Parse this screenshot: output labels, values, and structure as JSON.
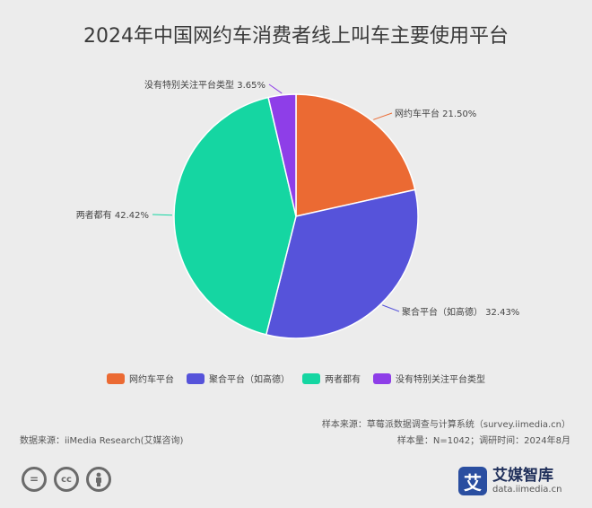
{
  "chart_data": {
    "type": "pie",
    "title": "2024年中国网约车消费者线上叫车主要使用平台",
    "slices": [
      {
        "name": "网约车平台",
        "value": 21.5,
        "label": "网约车平台 21.50%",
        "color": "#eb6a33"
      },
      {
        "name": "聚合平台（如高德）",
        "value": 32.43,
        "label": "聚合平台（如高德） 32.43%",
        "color": "#5653da"
      },
      {
        "name": "两者都有",
        "value": 42.42,
        "label": "两者都有 42.42%",
        "color": "#15d6a2"
      },
      {
        "name": "没有特别关注平台类型",
        "value": 3.65,
        "label": "没有特别关注平台类型 3.65%",
        "color": "#8e3ee8"
      }
    ],
    "legend": [
      "网约车平台",
      "聚合平台（如高德）",
      "两者都有",
      "没有特别关注平台类型"
    ],
    "legend_position": "bottom"
  },
  "footer": {
    "source": "数据来源：iiMedia Research(艾媒咨询)",
    "sample_source": "样本来源：草莓派数据调查与计算系统（survey.iimedia.cn）",
    "sample_size": "样本量：N=1042；调研时间：2024年8月"
  },
  "brand": {
    "mark": "艾",
    "name": "艾媒智库",
    "url": "data.iimedia.cn"
  },
  "license_icons": [
    "equals-icon",
    "cc-icon",
    "person-icon"
  ]
}
